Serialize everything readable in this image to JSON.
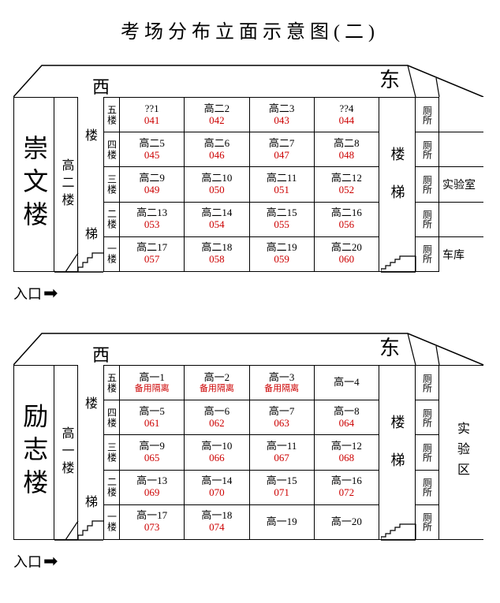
{
  "title": "考场分布立面示意图(二)",
  "west": "西",
  "east": "东",
  "entrance": "入口",
  "stairs_label": "楼梯",
  "toilet_label": "厕所",
  "buildings": [
    {
      "name": "崇文楼",
      "sub": "高二楼",
      "stair_right": "楼梯",
      "sides_mode": "cells",
      "sides": [
        "",
        "",
        "实验室",
        "",
        "车库"
      ],
      "floors": [
        {
          "label": "五楼",
          "rooms": [
            {
              "n": "??1",
              "c": "041"
            },
            {
              "n": "高二2",
              "c": "042"
            },
            {
              "n": "高二3",
              "c": "043"
            },
            {
              "n": "??4",
              "c": "044"
            }
          ]
        },
        {
          "label": "四楼",
          "rooms": [
            {
              "n": "高二5",
              "c": "045"
            },
            {
              "n": "高二6",
              "c": "046"
            },
            {
              "n": "高二7",
              "c": "047"
            },
            {
              "n": "高二8",
              "c": "048"
            }
          ]
        },
        {
          "label": "三楼",
          "rooms": [
            {
              "n": "高二9",
              "c": "049"
            },
            {
              "n": "高二10",
              "c": "050"
            },
            {
              "n": "高二11",
              "c": "051"
            },
            {
              "n": "高二12",
              "c": "052"
            }
          ]
        },
        {
          "label": "二楼",
          "rooms": [
            {
              "n": "高二13",
              "c": "053"
            },
            {
              "n": "高二14",
              "c": "054"
            },
            {
              "n": "高二15",
              "c": "055"
            },
            {
              "n": "高二16",
              "c": "056"
            }
          ]
        },
        {
          "label": "一楼",
          "rooms": [
            {
              "n": "高二17",
              "c": "057"
            },
            {
              "n": "高二18",
              "c": "058"
            },
            {
              "n": "高二19",
              "c": "059"
            },
            {
              "n": "高二20",
              "c": "060"
            }
          ]
        }
      ]
    },
    {
      "name": "励志楼",
      "sub": "高一楼",
      "stair_right": "楼梯",
      "sides_mode": "single",
      "sides_single": "实验区",
      "floors": [
        {
          "label": "五楼",
          "rooms": [
            {
              "n": "高一1",
              "r": "备用隔离"
            },
            {
              "n": "高一2",
              "r": "备用隔离"
            },
            {
              "n": "高一3",
              "r": "备用隔离"
            },
            {
              "n": "高一4",
              "c": ""
            }
          ]
        },
        {
          "label": "四楼",
          "rooms": [
            {
              "n": "高一5",
              "c": "061"
            },
            {
              "n": "高一6",
              "c": "062"
            },
            {
              "n": "高一7",
              "c": "063"
            },
            {
              "n": "高一8",
              "c": "064"
            }
          ]
        },
        {
          "label": "三楼",
          "rooms": [
            {
              "n": "高一9",
              "c": "065"
            },
            {
              "n": "高一10",
              "c": "066"
            },
            {
              "n": "高一11",
              "c": "067"
            },
            {
              "n": "高一12",
              "c": "068"
            }
          ]
        },
        {
          "label": "二楼",
          "rooms": [
            {
              "n": "高一13",
              "c": "069"
            },
            {
              "n": "高一14",
              "c": "070"
            },
            {
              "n": "高一15",
              "c": "071"
            },
            {
              "n": "高一16",
              "c": "072"
            }
          ]
        },
        {
          "label": "一楼",
          "rooms": [
            {
              "n": "高一17",
              "c": "073"
            },
            {
              "n": "高一18",
              "c": "074"
            },
            {
              "n": "高一19",
              "c": ""
            },
            {
              "n": "高一20",
              "c": ""
            }
          ]
        }
      ]
    }
  ]
}
